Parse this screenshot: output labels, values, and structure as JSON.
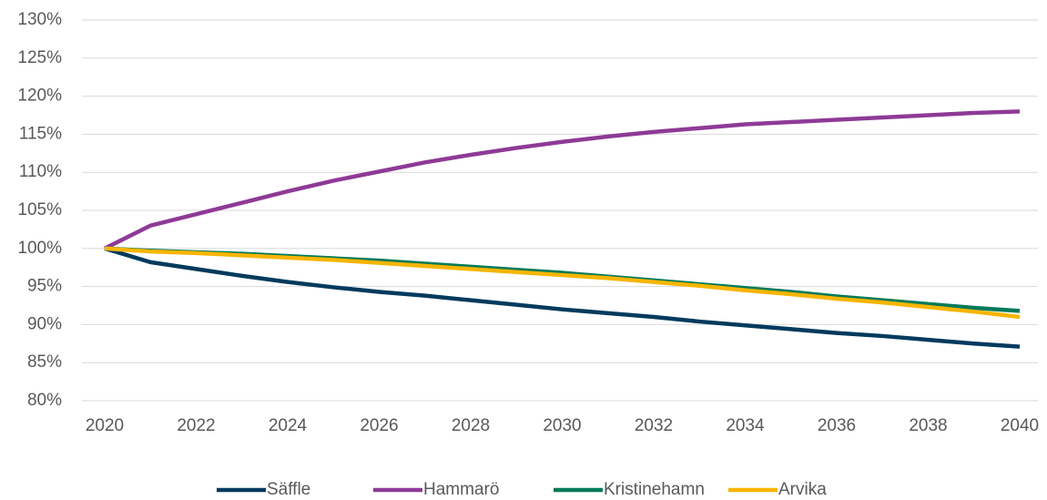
{
  "chart_data": {
    "type": "line",
    "x": [
      2020,
      2021,
      2022,
      2023,
      2024,
      2025,
      2026,
      2027,
      2028,
      2029,
      2030,
      2031,
      2032,
      2033,
      2034,
      2035,
      2036,
      2037,
      2038,
      2039,
      2040
    ],
    "series": [
      {
        "name": "Säffle",
        "color": "#003a5d",
        "values": [
          100,
          98.2,
          97.3,
          96.4,
          95.6,
          94.9,
          94.3,
          93.8,
          93.2,
          92.6,
          92.0,
          91.5,
          91.0,
          90.4,
          89.9,
          89.4,
          88.9,
          88.5,
          88.0,
          87.5,
          87.1
        ]
      },
      {
        "name": "Hammarö",
        "color": "#8e3a96",
        "values": [
          100,
          103,
          104.5,
          106,
          107.5,
          108.9,
          110.1,
          111.3,
          112.3,
          113.2,
          114.0,
          114.7,
          115.3,
          115.8,
          116.3,
          116.6,
          116.9,
          117.2,
          117.5,
          117.8,
          118.0
        ]
      },
      {
        "name": "Kristinehamn",
        "color": "#007a5a",
        "values": [
          100,
          99.7,
          99.5,
          99.3,
          99.0,
          98.7,
          98.4,
          98.0,
          97.6,
          97.2,
          96.8,
          96.3,
          95.8,
          95.3,
          94.8,
          94.3,
          93.7,
          93.2,
          92.7,
          92.2,
          91.8
        ]
      },
      {
        "name": "Arvika",
        "color": "#f7b500",
        "values": [
          100,
          99.6,
          99.4,
          99.1,
          98.8,
          98.5,
          98.1,
          97.7,
          97.3,
          96.9,
          96.5,
          96.1,
          95.6,
          95.1,
          94.5,
          94.0,
          93.4,
          92.9,
          92.3,
          91.7,
          91.0
        ]
      }
    ],
    "xlim": [
      2020,
      2040
    ],
    "xticks": [
      2020,
      2022,
      2024,
      2026,
      2028,
      2030,
      2032,
      2034,
      2036,
      2038,
      2040
    ],
    "ylim": [
      80,
      130
    ],
    "yticks": [
      {
        "value": 80,
        "label": "80%"
      },
      {
        "value": 85,
        "label": "85%"
      },
      {
        "value": 90,
        "label": "90%"
      },
      {
        "value": 95,
        "label": "95%"
      },
      {
        "value": 100,
        "label": "100%"
      },
      {
        "value": 105,
        "label": "105%"
      },
      {
        "value": 110,
        "label": "110%"
      },
      {
        "value": 115,
        "label": "115%"
      },
      {
        "value": 120,
        "label": "120%"
      },
      {
        "value": 125,
        "label": "125%"
      },
      {
        "value": 130,
        "label": "130%"
      }
    ],
    "grid": true,
    "legend": "bottom"
  }
}
